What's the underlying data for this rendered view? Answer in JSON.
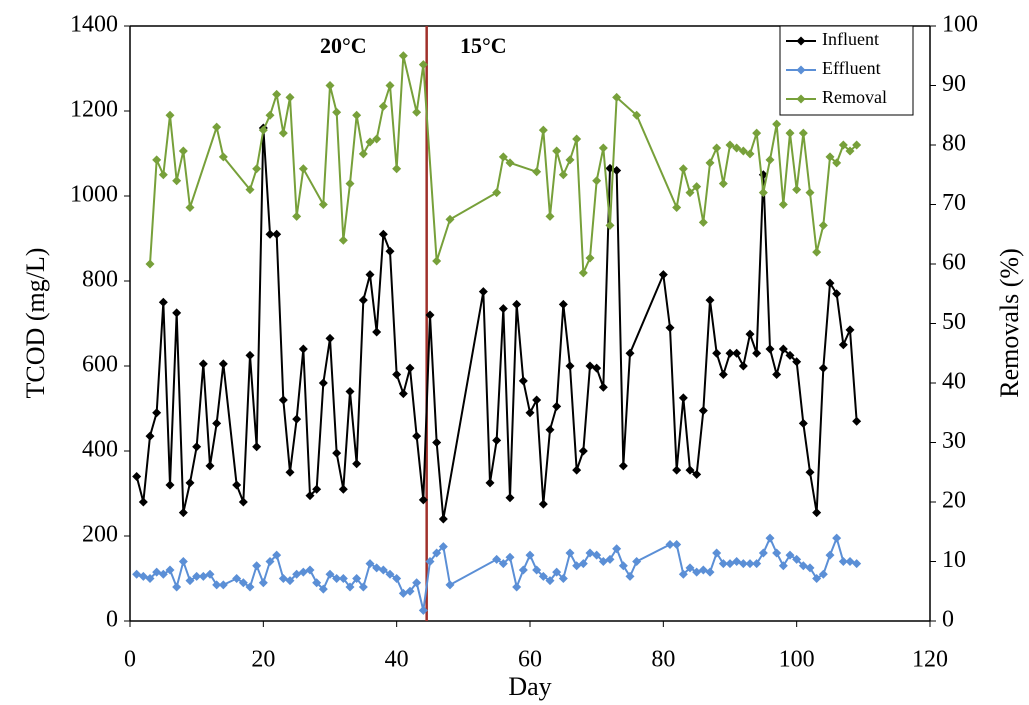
{
  "chart_data": {
    "type": "line",
    "xlabel": "Day",
    "ylabel": "TCOD (mg/L)",
    "y2label": "Removals (%)",
    "xlim": [
      0,
      120
    ],
    "xticks": [
      0,
      20,
      40,
      60,
      80,
      100,
      120
    ],
    "ylim": [
      0,
      1400
    ],
    "yticks": [
      0,
      200,
      400,
      600,
      800,
      1000,
      1200,
      1400
    ],
    "y2lim": [
      0,
      100
    ],
    "y2ticks": [
      0,
      10,
      20,
      30,
      40,
      50,
      60,
      70,
      80,
      90,
      100
    ],
    "legend": "upper right",
    "annotations": [
      {
        "text": "20°C",
        "x": 32
      },
      {
        "text": "15°C",
        "x": 53
      }
    ],
    "vline": {
      "x": 44.5,
      "color": "#a0302a"
    },
    "series": [
      {
        "name": "Influent",
        "color": "#000000",
        "x": [
          1,
          2,
          3,
          4,
          5,
          6,
          7,
          8,
          9,
          10,
          11,
          12,
          13,
          14,
          16,
          17,
          18,
          19,
          20,
          21,
          22,
          23,
          24,
          25,
          26,
          27,
          28,
          29,
          30,
          31,
          32,
          33,
          34,
          35,
          36,
          37,
          38,
          39,
          40,
          41,
          42,
          43,
          44,
          45,
          46,
          47,
          53,
          54,
          55,
          56,
          57,
          58,
          59,
          60,
          61,
          62,
          63,
          64,
          65,
          66,
          67,
          68,
          69,
          70,
          71,
          72,
          73,
          74,
          75,
          80,
          81,
          82,
          83,
          84,
          85,
          86,
          87,
          88,
          89,
          90,
          91,
          92,
          93,
          94,
          95,
          96,
          97,
          98,
          99,
          100,
          101,
          102,
          103,
          104,
          105,
          106,
          107,
          108,
          109
        ],
        "values": [
          340,
          280,
          435,
          490,
          750,
          320,
          725,
          255,
          325,
          410,
          605,
          365,
          465,
          605,
          320,
          280,
          625,
          410,
          1160,
          910,
          910,
          520,
          350,
          475,
          640,
          295,
          310,
          560,
          665,
          395,
          310,
          540,
          370,
          755,
          815,
          680,
          910,
          870,
          580,
          535,
          595,
          435,
          285,
          720,
          420,
          240,
          775,
          325,
          425,
          735,
          290,
          745,
          565,
          490,
          520,
          275,
          450,
          505,
          745,
          600,
          355,
          400,
          600,
          595,
          550,
          1065,
          1060,
          365,
          630,
          815,
          690,
          355,
          525,
          355,
          345,
          495,
          755,
          630,
          580,
          630,
          630,
          600,
          675,
          630,
          1050,
          640,
          580,
          640,
          625,
          610,
          465,
          350,
          255,
          595,
          795,
          770,
          650,
          685,
          470
        ]
      },
      {
        "name": "Effluent",
        "color": "#5b8fd6",
        "x": [
          1,
          2,
          3,
          4,
          5,
          6,
          7,
          8,
          9,
          10,
          11,
          12,
          13,
          14,
          16,
          17,
          18,
          19,
          20,
          21,
          22,
          23,
          24,
          25,
          26,
          27,
          28,
          29,
          30,
          31,
          32,
          33,
          34,
          35,
          36,
          37,
          38,
          39,
          40,
          41,
          42,
          43,
          44,
          45,
          46,
          47,
          48,
          55,
          56,
          57,
          58,
          59,
          60,
          61,
          62,
          63,
          64,
          65,
          66,
          67,
          68,
          69,
          70,
          71,
          72,
          73,
          74,
          75,
          76,
          81,
          82,
          83,
          84,
          85,
          86,
          87,
          88,
          89,
          90,
          91,
          92,
          93,
          94,
          95,
          96,
          97,
          98,
          99,
          100,
          101,
          102,
          103,
          104,
          105,
          106,
          107,
          108,
          109
        ],
        "values": [
          110,
          105,
          100,
          115,
          110,
          120,
          80,
          140,
          95,
          105,
          105,
          110,
          85,
          85,
          100,
          90,
          80,
          130,
          90,
          140,
          155,
          100,
          95,
          110,
          115,
          120,
          90,
          75,
          110,
          100,
          100,
          80,
          100,
          80,
          135,
          125,
          120,
          110,
          100,
          65,
          70,
          90,
          25,
          140,
          160,
          175,
          85,
          145,
          135,
          150,
          80,
          120,
          155,
          120,
          105,
          95,
          115,
          100,
          160,
          130,
          135,
          160,
          155,
          140,
          145,
          170,
          130,
          105,
          140,
          180,
          180,
          110,
          125,
          115,
          120,
          115,
          160,
          135,
          135,
          140,
          135,
          135,
          135,
          160,
          195,
          160,
          130,
          155,
          145,
          130,
          125,
          100,
          110,
          155,
          195,
          140,
          140,
          135
        ]
      },
      {
        "name": "Removal",
        "color": "#77a03a",
        "axis": "y2",
        "x": [
          3,
          4,
          5,
          6,
          7,
          8,
          9,
          13,
          14,
          18,
          19,
          20,
          21,
          22,
          23,
          24,
          25,
          26,
          29,
          30,
          31,
          32,
          33,
          34,
          35,
          36,
          37,
          38,
          39,
          40,
          41,
          43,
          44,
          46,
          48,
          55,
          56,
          57,
          61,
          62,
          63,
          64,
          65,
          66,
          67,
          68,
          69,
          70,
          71,
          72,
          73,
          76,
          82,
          83,
          84,
          85,
          86,
          87,
          88,
          89,
          90,
          91,
          92,
          93,
          94,
          95,
          96,
          97,
          98,
          99,
          100,
          101,
          102,
          103,
          104,
          105,
          106,
          107,
          108,
          109
        ],
        "values": [
          60,
          77.5,
          75,
          85,
          74,
          79,
          69.5,
          83,
          78,
          72.5,
          76,
          82.5,
          85,
          88.5,
          82,
          88,
          68,
          76,
          70,
          90,
          85.5,
          64,
          73.5,
          85,
          78.5,
          80.5,
          81,
          86.5,
          90,
          76,
          95,
          85.5,
          93.5,
          60.5,
          67.5,
          72,
          78,
          77,
          75.5,
          82.5,
          68,
          79,
          75,
          77.5,
          81,
          58.5,
          61,
          74,
          79.5,
          66.5,
          88,
          85,
          69.5,
          76,
          72,
          73,
          67,
          77,
          79.5,
          73.5,
          80,
          79.5,
          79,
          78.5,
          82,
          72,
          77.5,
          83.5,
          70,
          82,
          72.5,
          82,
          72,
          62,
          66.5,
          78,
          77,
          80,
          79,
          80
        ]
      }
    ]
  }
}
